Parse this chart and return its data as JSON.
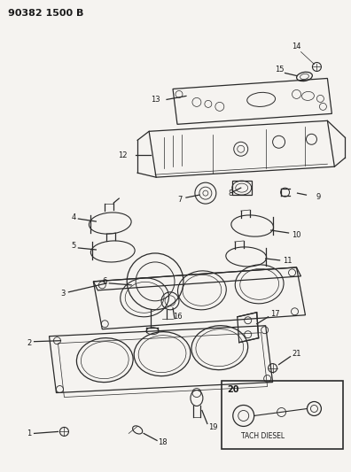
{
  "title": "90382 1500 B",
  "bg_color": "#f5f3f0",
  "line_color": "#2a2a2a",
  "text_color": "#1a1a1a",
  "fig_width": 3.96,
  "fig_height": 5.33,
  "dpi": 100
}
